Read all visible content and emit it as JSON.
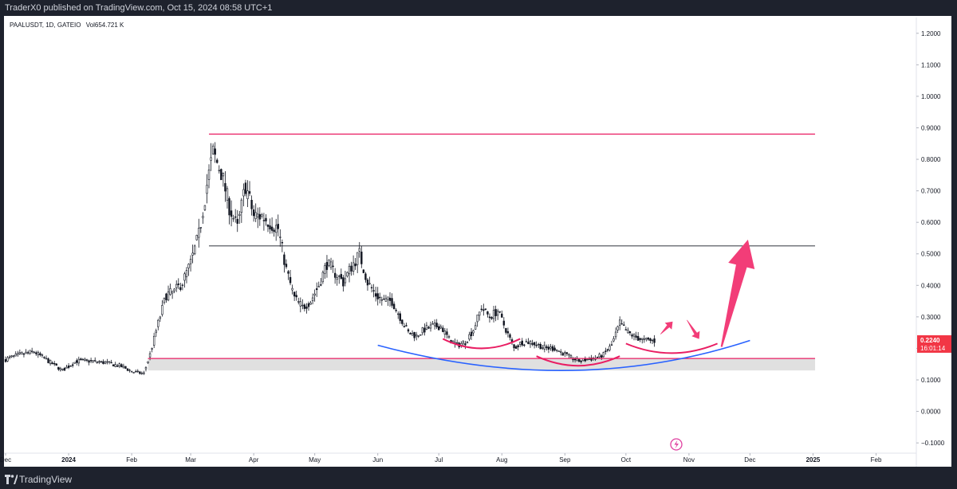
{
  "publish_line": "TraderX0 published on TradingView.com, Oct 15, 2024 08:58 UTC+1",
  "footer": {
    "brand": "TradingView"
  },
  "symbol_info": {
    "symbol": "PAALUSDT, 1D, GATEIO",
    "volume": "Vol654.721 K"
  },
  "colors": {
    "up": "#131722",
    "down": "#131722",
    "magenta_line": "#e91e63",
    "blue_curve": "#2962ff",
    "arrow": "#f23d78",
    "price_label_bg": "#f23645"
  },
  "chart_data": {
    "type": "candlestick",
    "title": "",
    "xlabel": "",
    "ylabel": "",
    "ylim": [
      -0.13,
      1.25
    ],
    "y_ticks": [
      1.2,
      1.1,
      1.0,
      0.9,
      0.8,
      0.7,
      0.6,
      0.5,
      0.4,
      0.3,
      0.2,
      0.1,
      0.0,
      -0.1
    ],
    "y_tick_labels": [
      "1.2000",
      "1.1000",
      "1.0000",
      "0.9000",
      "0.8000",
      "0.7000",
      "0.6000",
      "0.5000",
      "0.4000",
      "0.3000",
      "0.2000",
      "0.1000",
      "0.0000",
      "−0.1000"
    ],
    "x_range": [
      "2023-12-01",
      "2025-02-20"
    ],
    "x_ticks": [
      {
        "date": "2023-12-01",
        "label": "Dec",
        "bold": false
      },
      {
        "date": "2024-01-01",
        "label": "2024",
        "bold": true
      },
      {
        "date": "2024-02-01",
        "label": "Feb",
        "bold": false
      },
      {
        "date": "2024-03-01",
        "label": "Mar",
        "bold": false
      },
      {
        "date": "2024-04-01",
        "label": "Apr",
        "bold": false
      },
      {
        "date": "2024-05-01",
        "label": "May",
        "bold": false
      },
      {
        "date": "2024-06-01",
        "label": "Jun",
        "bold": false
      },
      {
        "date": "2024-07-01",
        "label": "Jul",
        "bold": false
      },
      {
        "date": "2024-08-01",
        "label": "Aug",
        "bold": false
      },
      {
        "date": "2024-09-01",
        "label": "Sep",
        "bold": false
      },
      {
        "date": "2024-10-01",
        "label": "Oct",
        "bold": false
      },
      {
        "date": "2024-11-01",
        "label": "Nov",
        "bold": false
      },
      {
        "date": "2024-12-01",
        "label": "Dec",
        "bold": false
      },
      {
        "date": "2025-01-01",
        "label": "2025",
        "bold": true
      },
      {
        "date": "2025-02-01",
        "label": "Feb",
        "bold": false
      }
    ],
    "price_path": [
      [
        "2023-12-01",
        0.165
      ],
      [
        "2023-12-08",
        0.18
      ],
      [
        "2023-12-15",
        0.19
      ],
      [
        "2023-12-22",
        0.16
      ],
      [
        "2023-12-29",
        0.13
      ],
      [
        "2024-01-05",
        0.16
      ],
      [
        "2024-01-12",
        0.16
      ],
      [
        "2024-01-19",
        0.155
      ],
      [
        "2024-01-26",
        0.145
      ],
      [
        "2024-02-02",
        0.125
      ],
      [
        "2024-02-07",
        0.12
      ],
      [
        "2024-02-10",
        0.18
      ],
      [
        "2024-02-14",
        0.28
      ],
      [
        "2024-02-18",
        0.37
      ],
      [
        "2024-02-22",
        0.38
      ],
      [
        "2024-02-26",
        0.41
      ],
      [
        "2024-03-01",
        0.47
      ],
      [
        "2024-03-05",
        0.56
      ],
      [
        "2024-03-09",
        0.72
      ],
      [
        "2024-03-12",
        0.82
      ],
      [
        "2024-03-16",
        0.76
      ],
      [
        "2024-03-20",
        0.65
      ],
      [
        "2024-03-24",
        0.58
      ],
      [
        "2024-03-28",
        0.72
      ],
      [
        "2024-04-01",
        0.62
      ],
      [
        "2024-04-05",
        0.62
      ],
      [
        "2024-04-09",
        0.6
      ],
      [
        "2024-04-13",
        0.58
      ],
      [
        "2024-04-17",
        0.45
      ],
      [
        "2024-04-21",
        0.36
      ],
      [
        "2024-04-25",
        0.33
      ],
      [
        "2024-04-29",
        0.35
      ],
      [
        "2024-05-03",
        0.4
      ],
      [
        "2024-05-07",
        0.47
      ],
      [
        "2024-05-11",
        0.44
      ],
      [
        "2024-05-15",
        0.41
      ],
      [
        "2024-05-19",
        0.46
      ],
      [
        "2024-05-23",
        0.5
      ],
      [
        "2024-05-27",
        0.41
      ],
      [
        "2024-05-31",
        0.37
      ],
      [
        "2024-06-04",
        0.35
      ],
      [
        "2024-06-08",
        0.35
      ],
      [
        "2024-06-12",
        0.3
      ],
      [
        "2024-06-16",
        0.25
      ],
      [
        "2024-06-20",
        0.24
      ],
      [
        "2024-06-24",
        0.26
      ],
      [
        "2024-06-28",
        0.27
      ],
      [
        "2024-07-02",
        0.27
      ],
      [
        "2024-07-06",
        0.23
      ],
      [
        "2024-07-10",
        0.21
      ],
      [
        "2024-07-14",
        0.22
      ],
      [
        "2024-07-18",
        0.26
      ],
      [
        "2024-07-22",
        0.33
      ],
      [
        "2024-07-26",
        0.3
      ],
      [
        "2024-07-30",
        0.32
      ],
      [
        "2024-08-03",
        0.26
      ],
      [
        "2024-08-07",
        0.2
      ],
      [
        "2024-08-11",
        0.22
      ],
      [
        "2024-08-15",
        0.22
      ],
      [
        "2024-08-19",
        0.21
      ],
      [
        "2024-08-23",
        0.2
      ],
      [
        "2024-08-27",
        0.2
      ],
      [
        "2024-08-31",
        0.185
      ],
      [
        "2024-09-04",
        0.17
      ],
      [
        "2024-09-08",
        0.16
      ],
      [
        "2024-09-12",
        0.165
      ],
      [
        "2024-09-16",
        0.17
      ],
      [
        "2024-09-20",
        0.18
      ],
      [
        "2024-09-24",
        0.21
      ],
      [
        "2024-09-28",
        0.28
      ],
      [
        "2024-10-02",
        0.25
      ],
      [
        "2024-10-06",
        0.235
      ],
      [
        "2024-10-10",
        0.225
      ],
      [
        "2024-10-15",
        0.224
      ]
    ],
    "annotations": {
      "resistance_top": 0.88,
      "mid_line": 0.525,
      "support_line": 0.168,
      "support_zone": [
        0.13,
        0.168
      ],
      "horizontal_lines_start": "2024-03-10",
      "support_line_start": "2024-02-09",
      "lines_end": "2025-01-02",
      "blue_curve": [
        [
          "2024-06-01",
          0.21
        ],
        [
          "2024-09-03",
          0.13
        ],
        [
          "2024-12-01",
          0.225
        ]
      ],
      "small_arcs": [
        {
          "from": "2024-07-03",
          "to": "2024-08-10",
          "depth": 0.2
        },
        {
          "from": "2024-08-18",
          "to": "2024-09-28",
          "depth": 0.145
        },
        {
          "from": "2024-10-01",
          "to": "2024-11-15",
          "depth": 0.185
        }
      ],
      "big_arrow": {
        "from": [
          "2024-11-17",
          0.205
        ],
        "to": [
          "2024-11-30",
          0.545
        ]
      },
      "small_arrow_up": {
        "from": [
          "2024-10-18",
          0.245
        ],
        "to": [
          "2024-10-24",
          0.285
        ]
      },
      "small_arrow_down": {
        "from": [
          "2024-10-31",
          0.29
        ],
        "to": [
          "2024-11-06",
          0.23
        ]
      }
    },
    "last_price_label": {
      "price": "0.2240",
      "countdown": "16:01:14"
    }
  }
}
